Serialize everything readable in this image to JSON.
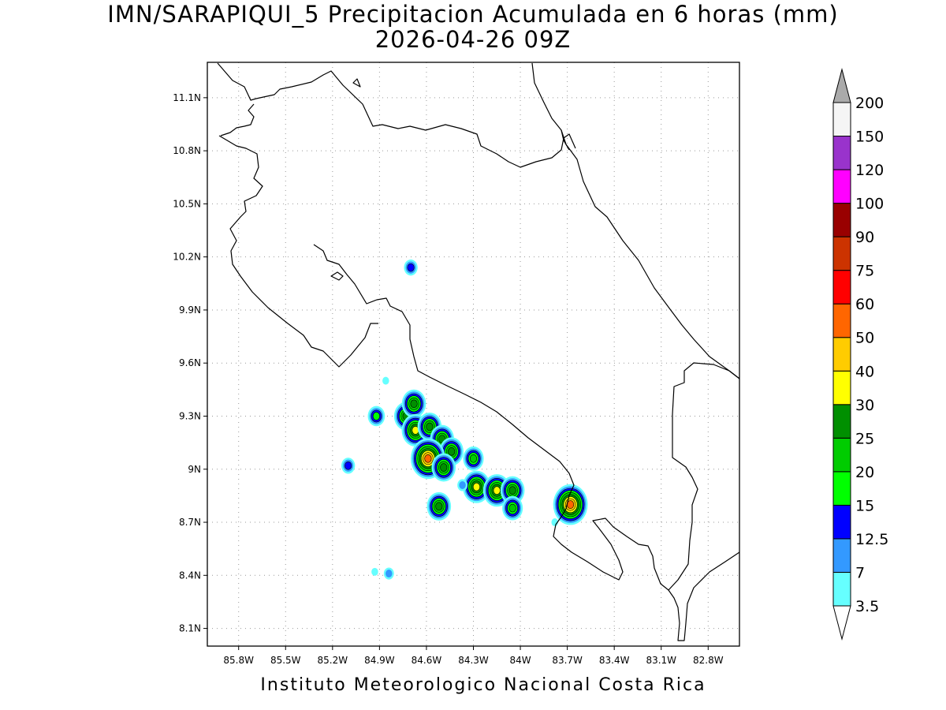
{
  "title": "IMN/SARAPIQUI_5 Precipitacion Acumulada en 6 horas (mm)",
  "subtitle": "2026-04-26 09Z",
  "footer": "Instituto Meteorologico Nacional Costa Rica",
  "map": {
    "lon_range": [
      -86.0,
      -82.6
    ],
    "lat_range": [
      8.0,
      11.3
    ],
    "lon_ticks": [
      "85.8W",
      "85.5W",
      "85.2W",
      "84.9W",
      "84.6W",
      "84.3W",
      "84W",
      "83.7W",
      "83.4W",
      "83.1W",
      "82.8W"
    ],
    "lon_values": [
      -85.8,
      -85.5,
      -85.2,
      -84.9,
      -84.6,
      -84.3,
      -84.0,
      -83.7,
      -83.4,
      -83.1,
      -82.8
    ],
    "lat_ticks": [
      "11.1N",
      "10.8N",
      "10.5N",
      "10.2N",
      "9.9N",
      "9.6N",
      "9.3N",
      "9N",
      "8.7N",
      "8.4N",
      "8.1N"
    ],
    "lat_values": [
      11.1,
      10.8,
      10.5,
      10.2,
      9.9,
      9.6,
      9.3,
      9.0,
      8.7,
      8.4,
      8.1
    ],
    "grid": true
  },
  "legend": {
    "labels": [
      "3.5",
      "7",
      "12.5",
      "15",
      "20",
      "25",
      "30",
      "40",
      "50",
      "60",
      "75",
      "90",
      "100",
      "120",
      "150",
      "200"
    ],
    "colors": [
      "#ffffff",
      "#66ffff",
      "#3399ff",
      "#0000ff",
      "#00ff00",
      "#00cc00",
      "#008f00",
      "#ffff00",
      "#ffcc00",
      "#ff6600",
      "#ff0000",
      "#cc3300",
      "#990000",
      "#ff00ff",
      "#9933cc",
      "#f5f5f5",
      "#aaaaaa"
    ]
  },
  "precip_cells": [
    {
      "lon": -84.7,
      "lat": 10.14,
      "max": "12.5"
    },
    {
      "lon": -85.1,
      "lat": 9.02,
      "max": "12.5"
    },
    {
      "lon": -84.92,
      "lat": 9.3,
      "max": "15"
    },
    {
      "lon": -84.73,
      "lat": 9.3,
      "max": "25"
    },
    {
      "lon": -84.68,
      "lat": 9.37,
      "max": "25"
    },
    {
      "lon": -84.67,
      "lat": 9.22,
      "max": "30"
    },
    {
      "lon": -84.58,
      "lat": 9.24,
      "max": "25"
    },
    {
      "lon": -84.5,
      "lat": 9.17,
      "max": "25"
    },
    {
      "lon": -84.44,
      "lat": 9.1,
      "max": "25"
    },
    {
      "lon": -84.59,
      "lat": 9.06,
      "max": "50"
    },
    {
      "lon": -84.49,
      "lat": 9.01,
      "max": "25"
    },
    {
      "lon": -84.3,
      "lat": 9.06,
      "max": "20"
    },
    {
      "lon": -84.28,
      "lat": 8.9,
      "max": "30"
    },
    {
      "lon": -84.15,
      "lat": 8.88,
      "max": "30"
    },
    {
      "lon": -84.05,
      "lat": 8.88,
      "max": "25"
    },
    {
      "lon": -84.05,
      "lat": 8.78,
      "max": "20"
    },
    {
      "lon": -83.68,
      "lat": 8.8,
      "max": "50"
    },
    {
      "lon": -84.52,
      "lat": 8.79,
      "max": "25"
    },
    {
      "lon": -84.37,
      "lat": 8.91,
      "max": "7"
    },
    {
      "lon": -83.78,
      "lat": 8.7,
      "max": "3.5"
    },
    {
      "lon": -84.93,
      "lat": 8.42,
      "max": "3.5"
    },
    {
      "lon": -84.84,
      "lat": 8.41,
      "max": "7"
    },
    {
      "lon": -84.86,
      "lat": 9.5,
      "max": "3.5"
    }
  ]
}
